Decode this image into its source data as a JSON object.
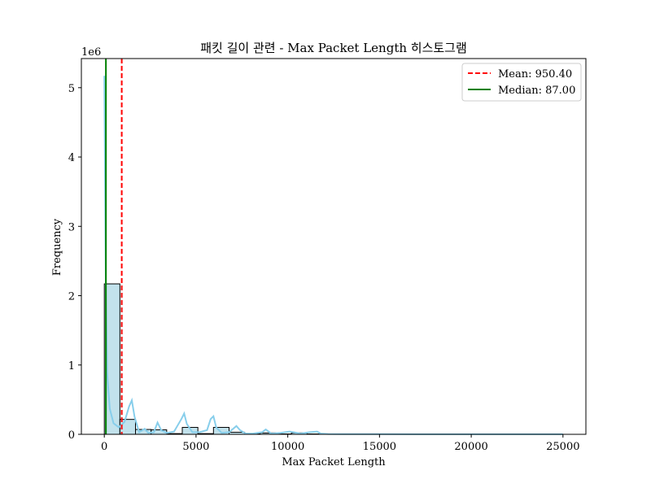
{
  "chart_data": {
    "type": "bar",
    "title": "패킷 길이 관련 - Max Packet Length 히스토그램",
    "xlabel": "Max Packet Length",
    "ylabel": "Frequency",
    "y_scale_label": "1e6",
    "xlim": [
      -1250,
      26250
    ],
    "ylim": [
      0,
      5.42
    ],
    "x_ticks": [
      0,
      5000,
      10000,
      15000,
      20000,
      25000
    ],
    "x_tick_labels": [
      "0",
      "5000",
      "10000",
      "15000",
      "20000",
      "25000"
    ],
    "y_ticks": [
      0,
      1,
      2,
      3,
      4,
      5
    ],
    "y_tick_labels": [
      "0",
      "1",
      "2",
      "3",
      "4",
      "5"
    ],
    "bin_width": 850,
    "bins_start": [
      0,
      850,
      1700,
      2550,
      3400,
      4250,
      5100,
      5950,
      6800,
      7650,
      8500,
      9350,
      10200,
      11050,
      11900
    ],
    "bins_values": [
      2.17,
      0.215,
      0.07,
      0.065,
      0.01,
      0.1,
      0.01,
      0.1,
      0.03,
      0.01,
      0.02,
      0.005,
      0.02,
      0.005,
      0.003
    ],
    "kde_x": [
      0,
      50,
      87,
      150,
      300,
      500,
      800,
      1100,
      1350,
      1500,
      1650,
      1900,
      2200,
      2400,
      2700,
      2900,
      3100,
      3400,
      3800,
      4200,
      4350,
      4500,
      4800,
      5200,
      5600,
      5800,
      5950,
      6100,
      6400,
      6800,
      7200,
      7400,
      7700,
      8100,
      8600,
      8800,
      9100,
      9600,
      10100,
      10300,
      10700,
      11200,
      11600,
      11800,
      12200,
      13000,
      15000,
      20000,
      25000
    ],
    "kde_y": [
      5.17,
      3.3,
      2.0,
      0.9,
      0.37,
      0.16,
      0.1,
      0.18,
      0.4,
      0.49,
      0.25,
      0.03,
      0.08,
      0.02,
      0.03,
      0.17,
      0.06,
      0.02,
      0.04,
      0.22,
      0.3,
      0.15,
      0.03,
      0.03,
      0.06,
      0.22,
      0.26,
      0.1,
      0.02,
      0.03,
      0.12,
      0.06,
      0.01,
      0.01,
      0.03,
      0.07,
      0.01,
      0.02,
      0.04,
      0.03,
      0.01,
      0.03,
      0.04,
      0.01,
      0.005,
      0.003,
      0.002,
      0.001,
      0.001
    ],
    "mean": 950.4,
    "median": 87.0,
    "legend": [
      {
        "label": "Mean: 950.40",
        "color": "#ff0000",
        "style": "dashed"
      },
      {
        "label": "Median: 87.00",
        "color": "#008000",
        "style": "solid"
      }
    ],
    "legend_position": "top-right",
    "grid": false,
    "colors": {
      "bar_fill": "#add8e6",
      "bar_edge": "#000000",
      "kde": "#87ceeb",
      "mean": "#ff0000",
      "median": "#008000"
    }
  }
}
